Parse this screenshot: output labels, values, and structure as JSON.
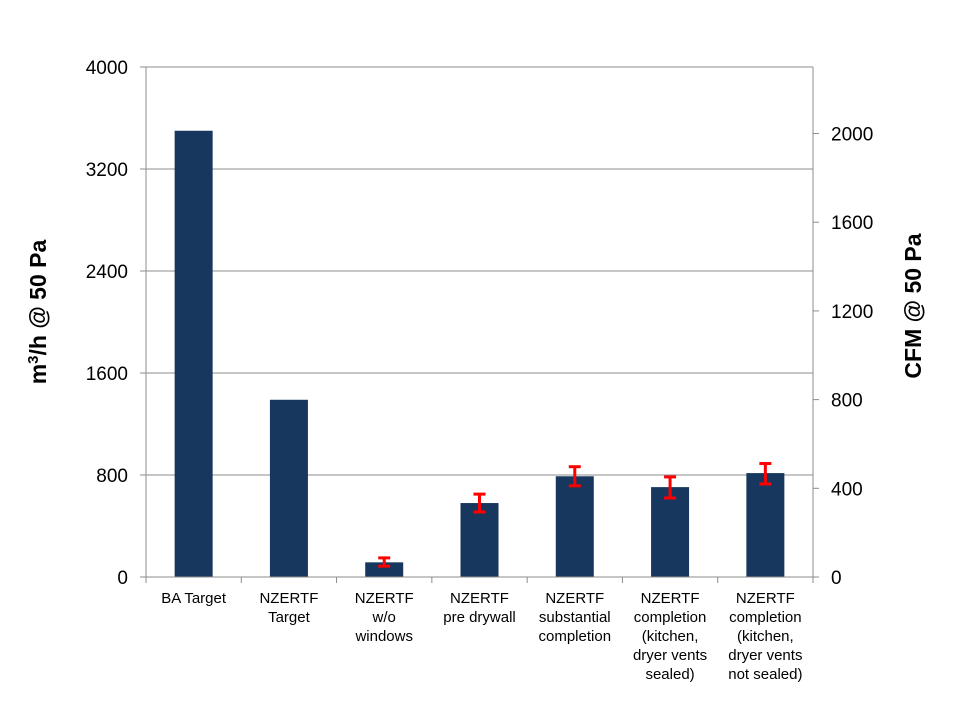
{
  "chart_data": {
    "type": "bar",
    "categories": [
      [
        "BA Target"
      ],
      [
        "NZERTF",
        "Target"
      ],
      [
        "NZERTF",
        "w/o",
        "windows"
      ],
      [
        "NZERTF",
        "pre drywall"
      ],
      [
        "NZERTF",
        "substantial",
        "completion"
      ],
      [
        "NZERTF",
        "completion",
        "(kitchen,",
        "dryer vents",
        "sealed)"
      ],
      [
        "NZERTF",
        "completion",
        "(kitchen,",
        "dryer vents",
        "not sealed)"
      ]
    ],
    "values": [
      3500,
      1390,
      115,
      580,
      790,
      705,
      815
    ],
    "error_bars": [
      null,
      null,
      [
        85,
        150
      ],
      [
        510,
        650
      ],
      [
        715,
        865
      ],
      [
        620,
        785
      ],
      [
        730,
        890
      ]
    ],
    "ylim": [
      0,
      4000
    ],
    "yticks": [
      "0",
      "800",
      "1600",
      "2400",
      "3200",
      "4000"
    ],
    "ylabel_left": {
      "main": "m",
      "sup": "3",
      "rest": "/h @ 50 Pa"
    },
    "y2lim": [
      0,
      2300
    ],
    "y2ticks": [
      "0",
      "400",
      "800",
      "1200",
      "1600",
      "2000"
    ],
    "ylabel_right": "CFM @ 50 Pa",
    "grid": true,
    "legend": "none",
    "bar_color": "#17375e",
    "error_color": "#ff0000"
  }
}
